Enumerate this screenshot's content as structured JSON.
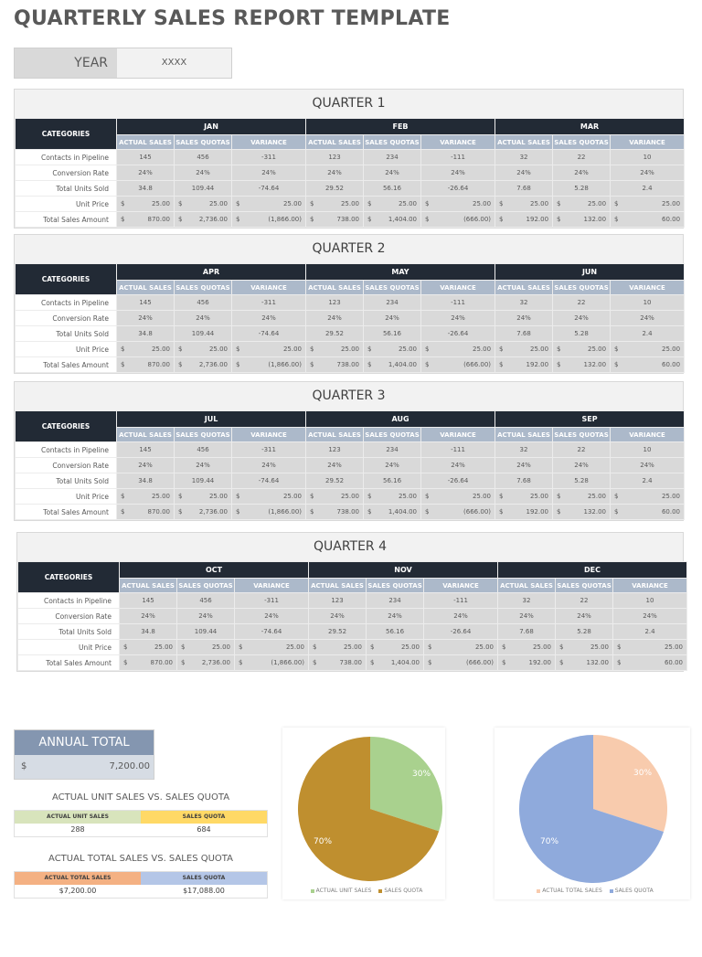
{
  "title": "QUARTERLY SALES REPORT TEMPLATE",
  "year": {
    "label": "YEAR",
    "value": "XXXX"
  },
  "table_labels": {
    "categories": "CATEGORIES",
    "sub_headers": [
      "ACTUAL SALES",
      "SALES QUOTAS",
      "VARIANCE"
    ],
    "rows": [
      "Contacts in Pipeline",
      "Conversion Rate",
      "Total Units Sold",
      "Unit Price",
      "Total Sales Amount"
    ],
    "currency": "$"
  },
  "quarters": [
    {
      "title": "QUARTER 1",
      "months": [
        "JAN",
        "FEB",
        "MAR"
      ]
    },
    {
      "title": "QUARTER 2",
      "months": [
        "APR",
        "MAY",
        "JUN"
      ]
    },
    {
      "title": "QUARTER 3",
      "months": [
        "JUL",
        "AUG",
        "SEP"
      ]
    },
    {
      "title": "QUARTER 4",
      "months": [
        "OCT",
        "NOV",
        "DEC"
      ]
    }
  ],
  "month_values": [
    {
      "contacts": [
        "145",
        "456",
        "-311"
      ],
      "conversion": [
        "24%",
        "24%",
        "24%"
      ],
      "units": [
        "34.8",
        "109.44",
        "-74.64"
      ],
      "unit_price": [
        "25.00",
        "25.00",
        "25.00"
      ],
      "total_sales": [
        "870.00",
        "2,736.00",
        "(1,866.00)"
      ]
    },
    {
      "contacts": [
        "123",
        "234",
        "-111"
      ],
      "conversion": [
        "24%",
        "24%",
        "24%"
      ],
      "units": [
        "29.52",
        "56.16",
        "-26.64"
      ],
      "unit_price": [
        "25.00",
        "25.00",
        "25.00"
      ],
      "total_sales": [
        "738.00",
        "1,404.00",
        "(666.00)"
      ]
    },
    {
      "contacts": [
        "32",
        "22",
        "10"
      ],
      "conversion": [
        "24%",
        "24%",
        "24%"
      ],
      "units": [
        "7.68",
        "5.28",
        "2.4"
      ],
      "unit_price": [
        "25.00",
        "25.00",
        "25.00"
      ],
      "total_sales": [
        "192.00",
        "132.00",
        "60.00"
      ]
    }
  ],
  "annual_total": {
    "label": "ANNUAL TOTAL",
    "currency": "$",
    "value": "7,200.00"
  },
  "unit_comparison": {
    "title": "ACTUAL UNIT SALES VS. SALES QUOTA",
    "headers": [
      "ACTUAL UNIT SALES",
      "SALES QUOTA"
    ],
    "values": [
      "288",
      "684"
    ],
    "colors": [
      "#d8e4bc",
      "#ffd966"
    ]
  },
  "total_comparison": {
    "title": "ACTUAL TOTAL SALES VS. SALES QUOTA",
    "headers": [
      "ACTUAL TOTAL SALES",
      "SALES QUOTA"
    ],
    "values": [
      "$7,200.00",
      "$17,088.00"
    ],
    "colors": [
      "#f4b183",
      "#b4c6e7"
    ]
  },
  "chart_data": [
    {
      "type": "pie",
      "title": "",
      "categories": [
        "ACTUAL UNIT SALES",
        "SALES QUOTA"
      ],
      "values": [
        30,
        70
      ],
      "labels": [
        "30%",
        "70%"
      ],
      "colors": [
        "#a9d18e",
        "#bf8f2f"
      ],
      "legend_position": "bottom"
    },
    {
      "type": "pie",
      "title": "",
      "categories": [
        "ACTUAL TOTAL SALES",
        "SALES QUOTA"
      ],
      "values": [
        30,
        70
      ],
      "labels": [
        "30%",
        "70%"
      ],
      "colors": [
        "#f8cbad",
        "#8faadc"
      ],
      "legend_position": "bottom"
    }
  ]
}
